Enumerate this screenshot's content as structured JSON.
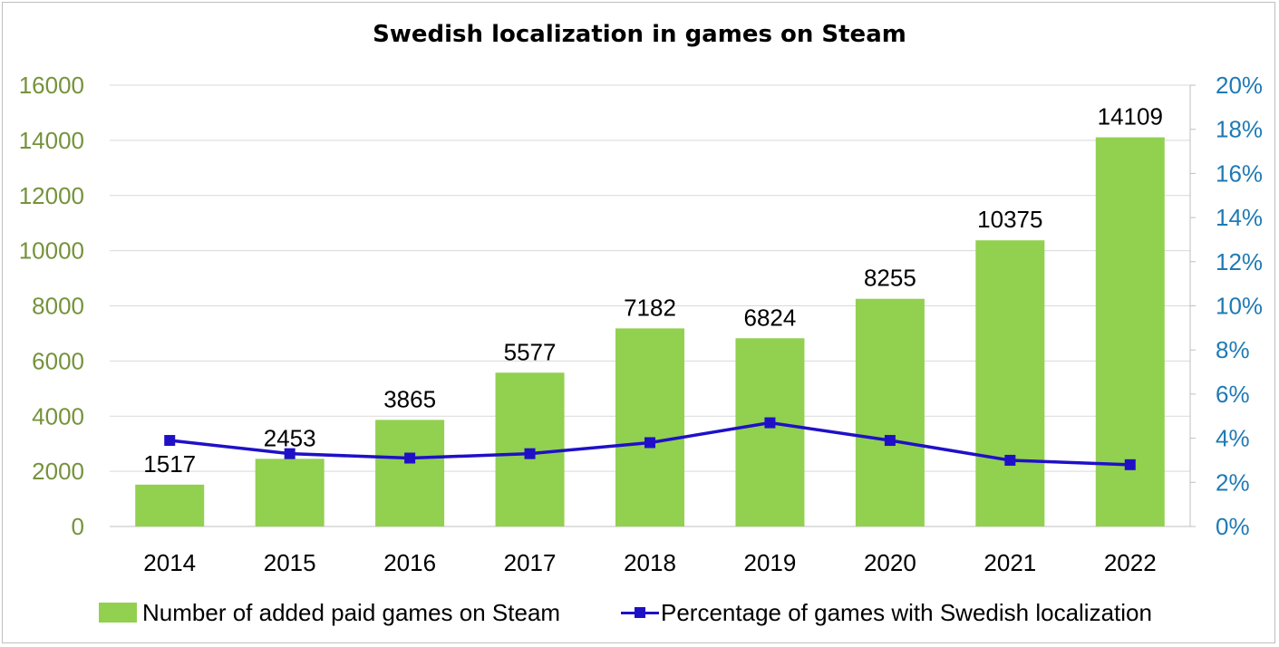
{
  "chart_data": {
    "type": "bar",
    "title": "Swedish localization in games on Steam",
    "categories": [
      "2014",
      "2015",
      "2016",
      "2017",
      "2018",
      "2019",
      "2020",
      "2021",
      "2022"
    ],
    "series": [
      {
        "name": "Number of added paid games on Steam",
        "type": "bar",
        "axis": "left",
        "color": "#92d050",
        "values": [
          1517,
          2453,
          3865,
          5577,
          7182,
          6824,
          8255,
          10375,
          14109
        ],
        "data_labels": [
          "1517",
          "2453",
          "3865",
          "5577",
          "7182",
          "6824",
          "8255",
          "10375",
          "14109"
        ]
      },
      {
        "name": "Percentage of games with Swedish localization",
        "type": "line",
        "axis": "right",
        "color": "#1f10c8",
        "marker": "square",
        "values": [
          3.9,
          3.3,
          3.1,
          3.3,
          3.8,
          4.7,
          3.9,
          3.0,
          2.8
        ]
      }
    ],
    "y_left": {
      "ylim": [
        0,
        16000
      ],
      "ticks": [
        "0",
        "2000",
        "4000",
        "6000",
        "8000",
        "10000",
        "12000",
        "14000",
        "16000"
      ],
      "color": "#76923c"
    },
    "y_right": {
      "ylim": [
        0,
        20
      ],
      "ticks": [
        "0%",
        "2%",
        "4%",
        "6%",
        "8%",
        "10%",
        "12%",
        "14%",
        "16%",
        "18%",
        "20%"
      ],
      "color": "#1f7ab4"
    },
    "grid": true,
    "legend_position": "bottom"
  }
}
